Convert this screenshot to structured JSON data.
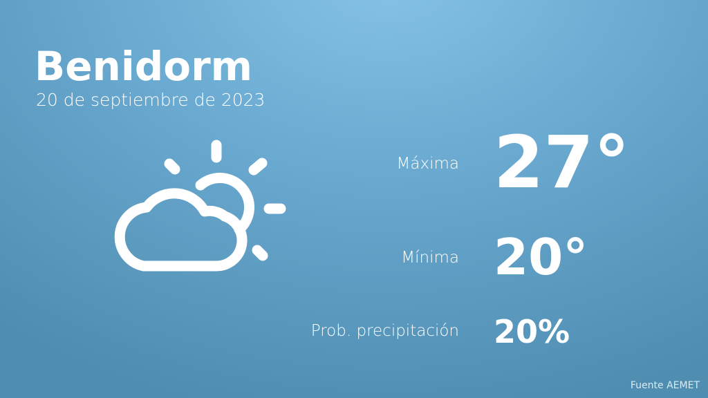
{
  "location": {
    "city": "Benidorm",
    "date": "20 de septiembre de 2023"
  },
  "weather_icon": "partly-cloudy-icon",
  "forecast": {
    "max": {
      "label": "Máxima",
      "value": "27°"
    },
    "min": {
      "label": "Mínima",
      "value": "20°"
    },
    "precip": {
      "label": "Prob. precipitación",
      "value": "20%"
    }
  },
  "source": "Fuente AEMET",
  "colors": {
    "background_top": "#86c3e6",
    "background_bottom": "#4f8db1",
    "text": "#ffffff"
  }
}
